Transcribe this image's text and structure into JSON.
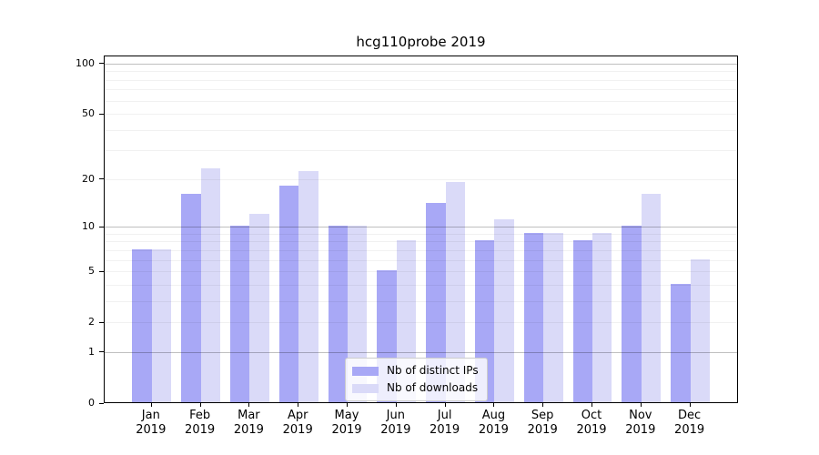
{
  "title": "hcg110probe 2019",
  "chart_data": {
    "type": "bar",
    "title": "hcg110probe 2019",
    "categories": [
      "Jan 2019",
      "Feb 2019",
      "Mar 2019",
      "Apr 2019",
      "May 2019",
      "Jun 2019",
      "Jul 2019",
      "Aug 2019",
      "Sep 2019",
      "Oct 2019",
      "Nov 2019",
      "Dec 2019"
    ],
    "series": [
      {
        "name": "Nb of distinct IPs",
        "color": "#a8a8f6",
        "values": [
          7,
          16,
          10,
          18,
          10,
          5,
          14,
          8,
          9,
          8,
          10,
          4
        ]
      },
      {
        "name": "Nb of downloads",
        "color": "#dadaf8",
        "values": [
          7,
          23,
          12,
          22,
          10,
          8,
          19,
          11,
          9,
          9,
          16,
          6
        ]
      }
    ],
    "yscale": "log1p",
    "yticks": [
      0,
      1,
      2,
      5,
      10,
      20,
      50,
      100
    ],
    "ytick_labels": [
      "0",
      "1",
      "2",
      "5",
      "10",
      "20",
      "50",
      "100"
    ],
    "ylim": [
      0,
      112
    ],
    "xlabel": "",
    "ylabel": "",
    "grid": true,
    "legend_position": "lower center"
  }
}
